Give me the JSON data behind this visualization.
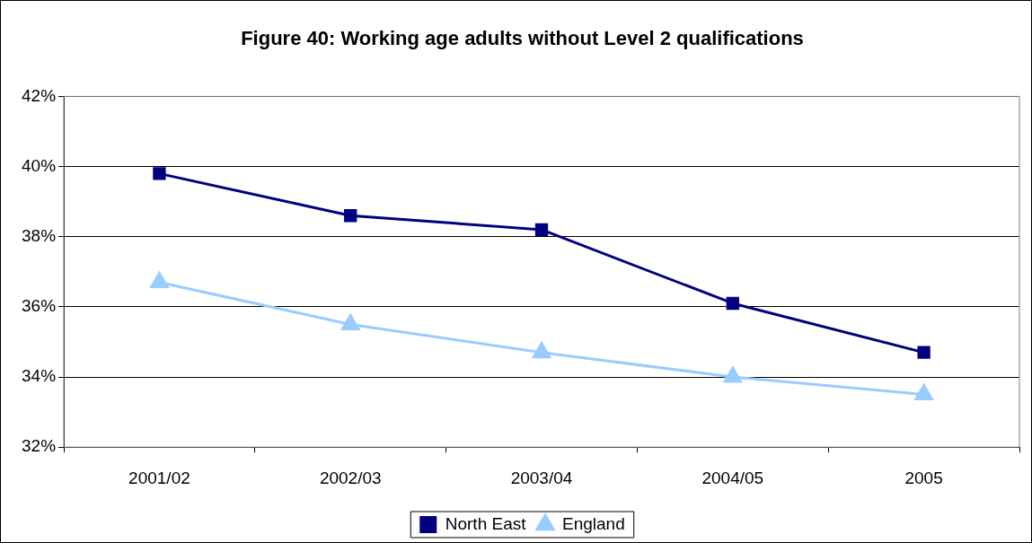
{
  "chart_data": {
    "type": "line",
    "title": "Figure 40: Working age adults without Level 2 qualifications",
    "categories": [
      "2001/02",
      "2002/03",
      "2003/04",
      "2004/05",
      "2005"
    ],
    "series": [
      {
        "name": "North East",
        "color": "#000080",
        "marker": "square",
        "values": [
          39.8,
          38.6,
          38.2,
          36.1,
          34.7
        ]
      },
      {
        "name": "England",
        "color": "#99ccff",
        "marker": "triangle",
        "values": [
          36.7,
          35.5,
          34.7,
          34.0,
          33.5
        ]
      }
    ],
    "ylim": [
      32,
      42
    ],
    "yticks": [
      {
        "value": 32,
        "label": "32%"
      },
      {
        "value": 34,
        "label": "34%"
      },
      {
        "value": 36,
        "label": "36%"
      },
      {
        "value": 38,
        "label": "38%"
      },
      {
        "value": 40,
        "label": "40%"
      },
      {
        "value": 42,
        "label": "42%"
      }
    ],
    "grid": "y",
    "legend": "bottom",
    "line_style": "solid"
  }
}
